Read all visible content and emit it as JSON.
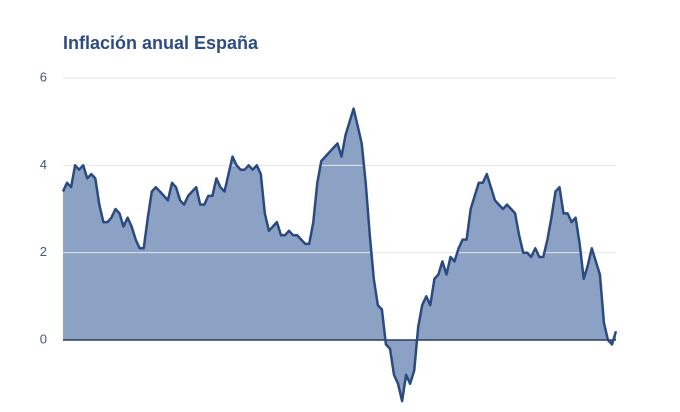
{
  "chart_data": {
    "type": "area",
    "title": "Inflación anual España",
    "values": [
      3.4,
      3.6,
      3.5,
      4.0,
      3.9,
      4.0,
      3.7,
      3.8,
      3.7,
      3.1,
      2.7,
      2.7,
      2.8,
      3.0,
      2.9,
      2.6,
      2.8,
      2.6,
      2.3,
      2.1,
      2.1,
      2.8,
      3.4,
      3.5,
      3.4,
      3.3,
      3.2,
      3.6,
      3.5,
      3.2,
      3.1,
      3.3,
      3.4,
      3.5,
      3.1,
      3.1,
      3.3,
      3.3,
      3.7,
      3.5,
      3.4,
      3.8,
      4.2,
      4.0,
      3.9,
      3.9,
      4.0,
      3.9,
      4.0,
      3.8,
      2.9,
      2.5,
      2.6,
      2.7,
      2.4,
      2.4,
      2.5,
      2.4,
      2.4,
      2.3,
      2.2,
      2.2,
      2.7,
      3.6,
      4.1,
      4.2,
      4.3,
      4.4,
      4.5,
      4.2,
      4.7,
      5.0,
      5.3,
      4.9,
      4.5,
      3.6,
      2.4,
      1.4,
      0.8,
      0.7,
      -0.1,
      -0.2,
      -0.8,
      -1.0,
      -1.4,
      -0.8,
      -1.0,
      -0.7,
      0.3,
      0.8,
      1.0,
      0.8,
      1.4,
      1.5,
      1.8,
      1.5,
      1.9,
      1.8,
      2.1,
      2.3,
      2.3,
      3.0,
      3.3,
      3.6,
      3.6,
      3.8,
      3.5,
      3.2,
      3.1,
      3.0,
      3.1,
      3.0,
      2.9,
      2.4,
      2.0,
      2.0,
      1.9,
      2.1,
      1.9,
      1.9,
      2.3,
      2.8,
      3.4,
      3.5,
      2.9,
      2.9,
      2.7,
      2.8,
      2.2,
      1.4,
      1.7,
      2.1,
      1.8,
      1.5,
      0.4,
      0.0,
      -0.1,
      0.2
    ],
    "color": "#8ca2c4",
    "line_color": "#2b4a80",
    "ylim": [
      -1.5,
      6
    ],
    "yticks": [
      0,
      2,
      4,
      6
    ],
    "grid": true
  }
}
